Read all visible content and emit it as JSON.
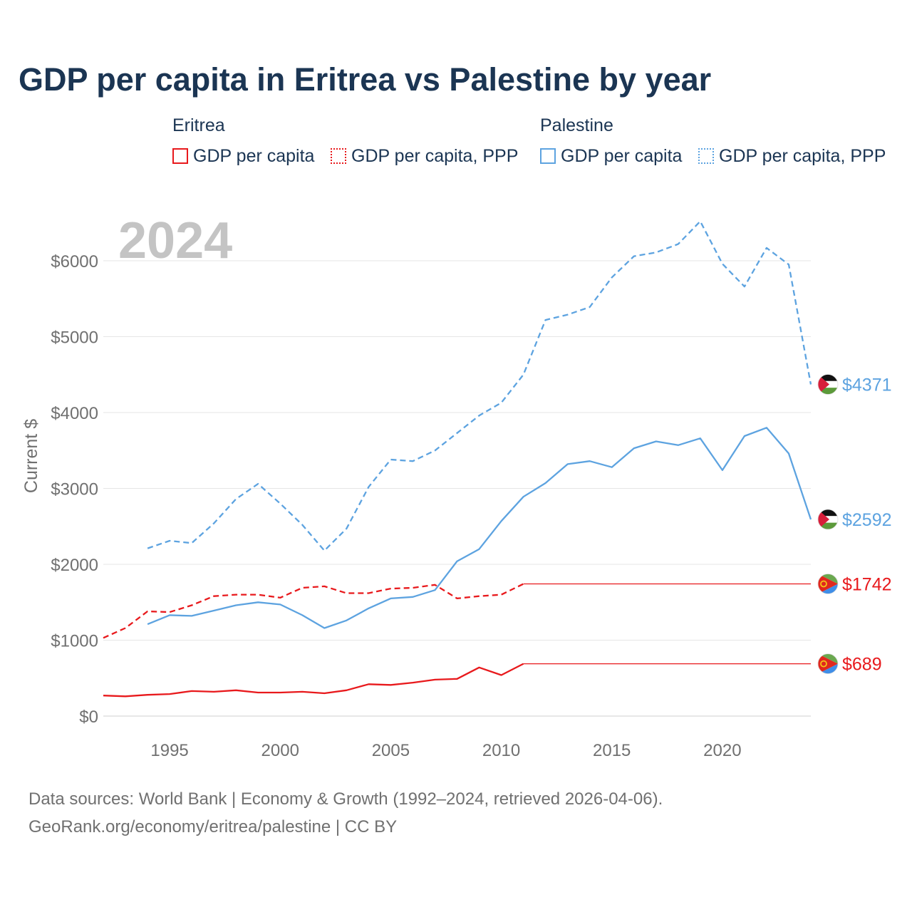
{
  "chart_data": {
    "type": "line",
    "title": "GDP per capita in Eritrea vs Palestine by year",
    "ylabel": "Current $",
    "xlabel": "",
    "year_watermark": "2024",
    "xlim": [
      1992,
      2024
    ],
    "ylim": [
      0,
      6500
    ],
    "x_ticks": [
      1995,
      2000,
      2005,
      2010,
      2015,
      2020
    ],
    "x_tick_labels": [
      "1995",
      "2000",
      "2005",
      "2010",
      "2015",
      "2020"
    ],
    "y_ticks": [
      0,
      1000,
      2000,
      3000,
      4000,
      5000,
      6000
    ],
    "y_tick_labels": [
      "$0",
      "$1000",
      "$2000",
      "$3000",
      "$4000",
      "$5000",
      "$6000"
    ],
    "grid": true,
    "legend_position": "top",
    "legend": [
      {
        "group": "Eritrea",
        "items": [
          {
            "label": "GDP per capita",
            "style": "solid",
            "color": "#e8191c"
          },
          {
            "label": "GDP per capita, PPP",
            "style": "dotted",
            "color": "#e8191c"
          }
        ]
      },
      {
        "group": "Palestine",
        "items": [
          {
            "label": "GDP per capita",
            "style": "solid",
            "color": "#5da3e0"
          },
          {
            "label": "GDP per capita, PPP",
            "style": "dotted",
            "color": "#5da3e0"
          }
        ]
      }
    ],
    "series": [
      {
        "name": "Palestine — GDP per capita, PPP",
        "country": "Palestine",
        "color": "#5da3e0",
        "dashed": true,
        "end_label": "$4371",
        "flag": "palestine",
        "x": [
          1994,
          1995,
          1996,
          1997,
          1998,
          1999,
          2000,
          2001,
          2002,
          2003,
          2004,
          2005,
          2006,
          2007,
          2008,
          2009,
          2010,
          2011,
          2012,
          2013,
          2014,
          2015,
          2016,
          2017,
          2018,
          2019,
          2020,
          2021,
          2022,
          2023,
          2024
        ],
        "values": [
          2210,
          2310,
          2280,
          2540,
          2860,
          3060,
          2800,
          2520,
          2180,
          2470,
          3020,
          3380,
          3360,
          3500,
          3730,
          3960,
          4130,
          4500,
          5220,
          5290,
          5390,
          5780,
          6060,
          6110,
          6220,
          6520,
          5960,
          5660,
          6170,
          5950,
          4371
        ]
      },
      {
        "name": "Palestine — GDP per capita",
        "country": "Palestine",
        "color": "#5da3e0",
        "dashed": false,
        "end_label": "$2592",
        "flag": "palestine",
        "x": [
          1994,
          1995,
          1996,
          1997,
          1998,
          1999,
          2000,
          2001,
          2002,
          2003,
          2004,
          2005,
          2006,
          2007,
          2008,
          2009,
          2010,
          2011,
          2012,
          2013,
          2014,
          2015,
          2016,
          2017,
          2018,
          2019,
          2020,
          2021,
          2022,
          2023,
          2024
        ],
        "values": [
          1210,
          1330,
          1320,
          1390,
          1460,
          1500,
          1470,
          1330,
          1160,
          1260,
          1420,
          1550,
          1570,
          1660,
          2040,
          2200,
          2570,
          2890,
          3070,
          3320,
          3360,
          3280,
          3530,
          3620,
          3570,
          3660,
          3240,
          3690,
          3800,
          3460,
          2592
        ]
      },
      {
        "name": "Eritrea — GDP per capita, PPP",
        "country": "Eritrea",
        "color": "#e8191c",
        "dashed": true,
        "end_label": "$1742",
        "flag": "eritrea",
        "x": [
          1992,
          1993,
          1994,
          1995,
          1996,
          1997,
          1998,
          1999,
          2000,
          2001,
          2002,
          2003,
          2004,
          2005,
          2006,
          2007,
          2008,
          2009,
          2010,
          2011,
          2024
        ],
        "values": [
          1030,
          1160,
          1380,
          1370,
          1460,
          1580,
          1600,
          1600,
          1560,
          1690,
          1710,
          1620,
          1620,
          1680,
          1690,
          1730,
          1550,
          1580,
          1600,
          1742,
          1742
        ]
      },
      {
        "name": "Eritrea — GDP per capita",
        "country": "Eritrea",
        "color": "#e8191c",
        "dashed": false,
        "end_label": "$689",
        "flag": "eritrea",
        "x": [
          1992,
          1993,
          1994,
          1995,
          1996,
          1997,
          1998,
          1999,
          2000,
          2001,
          2002,
          2003,
          2004,
          2005,
          2006,
          2007,
          2008,
          2009,
          2010,
          2011,
          2024
        ],
        "values": [
          270,
          260,
          280,
          290,
          330,
          320,
          340,
          310,
          310,
          320,
          300,
          340,
          420,
          410,
          440,
          480,
          490,
          640,
          540,
          689,
          689
        ]
      }
    ]
  },
  "source": {
    "line1": "Data sources: World Bank | Economy & Growth (1992–2024, retrieved 2026-04-06).",
    "line2": "GeoRank.org/economy/eritrea/palestine | CC BY"
  }
}
